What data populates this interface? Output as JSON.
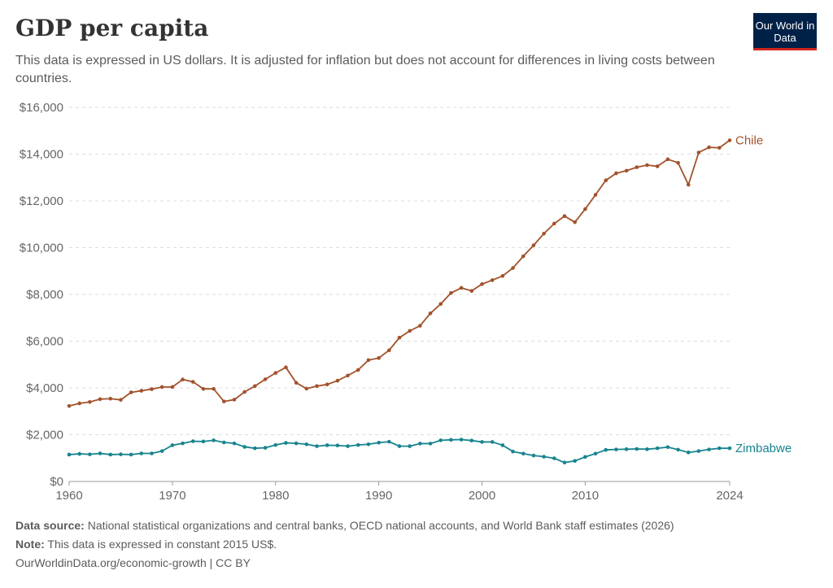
{
  "header": {
    "title": "GDP per capita",
    "subtitle": "This data is expressed in US dollars. It is adjusted for inflation but does not account for differences in living costs between countries.",
    "logo": "Our World in Data"
  },
  "footer": {
    "source_label": "Data source:",
    "source": "National statistical organizations and central banks, OECD national accounts, and World Bank staff estimates (2026)",
    "note_label": "Note:",
    "note": "This data is expressed in constant 2015 US$.",
    "link": "OurWorldinData.org/economic-growth | CC BY"
  },
  "chart_data": {
    "type": "line",
    "title": "GDP per capita",
    "xlim": [
      1960,
      2024
    ],
    "ylim": [
      0,
      16000
    ],
    "grid": "horizontal dashed",
    "yticks": [
      0,
      2000,
      4000,
      6000,
      8000,
      10000,
      12000,
      14000,
      16000
    ],
    "ytick_labels": [
      "$0",
      "$2,000",
      "$4,000",
      "$6,000",
      "$8,000",
      "$10,000",
      "$12,000",
      "$14,000",
      "$16,000"
    ],
    "xticks": [
      1960,
      1970,
      1980,
      1990,
      2000,
      2010,
      2024
    ],
    "xtick_labels": [
      "1960",
      "1970",
      "1980",
      "1990",
      "2000",
      "2010",
      "2024"
    ],
    "x_start": 1960,
    "series": [
      {
        "name": "Chile",
        "color": "#a2522b",
        "values": [
          3230,
          3340,
          3400,
          3520,
          3540,
          3490,
          3810,
          3880,
          3950,
          4040,
          4040,
          4360,
          4260,
          3960,
          3960,
          3420,
          3500,
          3830,
          4080,
          4370,
          4640,
          4880,
          4220,
          3970,
          4080,
          4150,
          4310,
          4530,
          4770,
          5190,
          5280,
          5610,
          6150,
          6440,
          6660,
          7190,
          7590,
          8060,
          8280,
          8150,
          8440,
          8610,
          8790,
          9130,
          9630,
          10100,
          10600,
          11030,
          11350,
          11090,
          11650,
          12260,
          12880,
          13180,
          13290,
          13440,
          13530,
          13480,
          13780,
          13630,
          12690,
          14070,
          14290,
          14270,
          14590
        ]
      },
      {
        "name": "Zimbabwe",
        "color": "#18848f",
        "values": [
          1150,
          1180,
          1160,
          1200,
          1150,
          1160,
          1150,
          1200,
          1200,
          1300,
          1550,
          1630,
          1720,
          1710,
          1760,
          1670,
          1630,
          1480,
          1420,
          1440,
          1560,
          1650,
          1630,
          1590,
          1510,
          1550,
          1540,
          1510,
          1560,
          1590,
          1660,
          1700,
          1510,
          1510,
          1620,
          1620,
          1760,
          1780,
          1790,
          1750,
          1690,
          1690,
          1550,
          1280,
          1190,
          1110,
          1060,
          990,
          810,
          880,
          1050,
          1190,
          1350,
          1370,
          1380,
          1390,
          1380,
          1420,
          1470,
          1360,
          1240,
          1300,
          1370,
          1420,
          1420
        ]
      }
    ]
  }
}
